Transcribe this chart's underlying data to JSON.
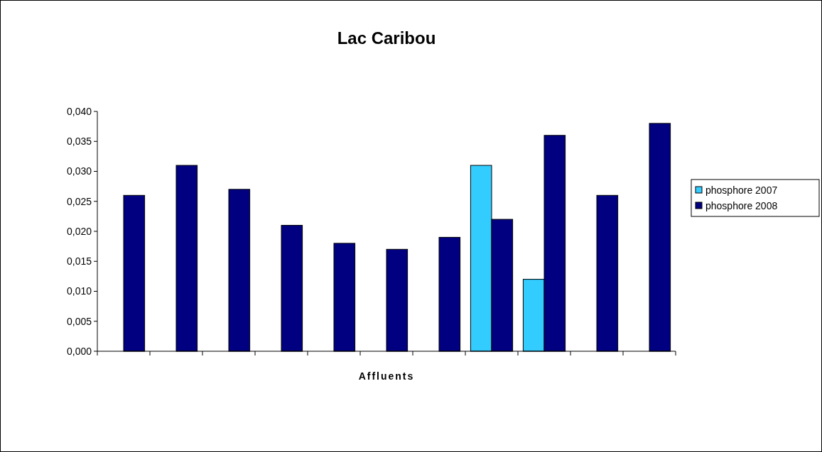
{
  "chart_data": {
    "type": "bar",
    "title": "Lac Caribou",
    "xlabel": "Affluents",
    "categories": [
      null,
      null,
      null,
      null,
      null,
      null,
      null,
      null,
      null,
      null,
      null
    ],
    "series": [
      {
        "name": "phosphore 2007",
        "color": "#33ccff",
        "values": [
          null,
          null,
          null,
          null,
          null,
          null,
          null,
          0.031,
          0.012,
          null,
          null
        ]
      },
      {
        "name": "phosphore 2008",
        "color": "#000080",
        "values": [
          0.026,
          0.031,
          0.027,
          0.021,
          0.018,
          0.017,
          0.019,
          0.022,
          0.036,
          0.026,
          0.038
        ]
      }
    ],
    "ylim": [
      0,
      0.04
    ],
    "yticks": [
      {
        "value": 0,
        "label": "0,000"
      },
      {
        "value": 0.005,
        "label": "0,005"
      },
      {
        "value": 0.01,
        "label": "0,010"
      },
      {
        "value": 0.015,
        "label": "0,015"
      },
      {
        "value": 0.02,
        "label": "0,020"
      },
      {
        "value": 0.025,
        "label": "0,025"
      },
      {
        "value": 0.03,
        "label": "0,030"
      },
      {
        "value": 0.035,
        "label": "0,035"
      },
      {
        "value": 0.04,
        "label": "0,040"
      }
    ],
    "grid": false,
    "legend": "right"
  }
}
